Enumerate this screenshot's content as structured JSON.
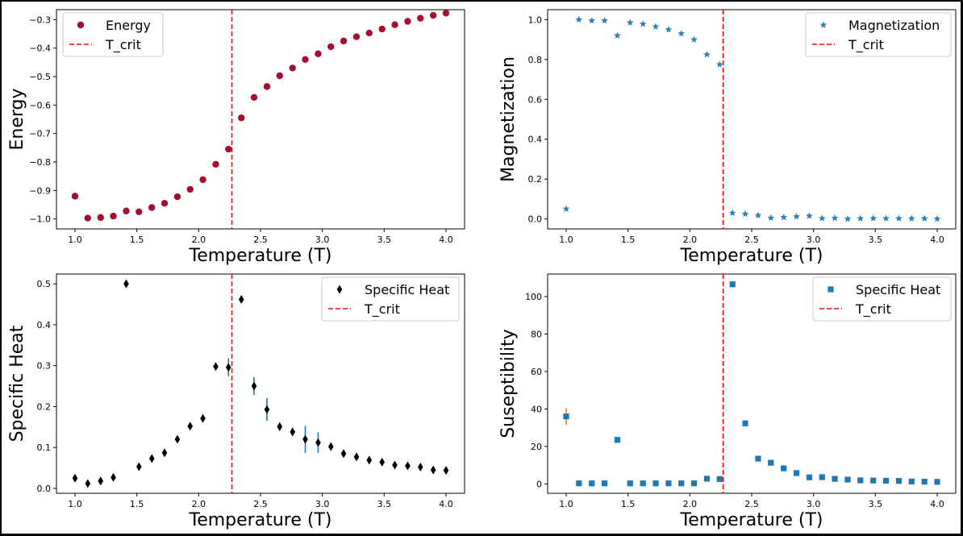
{
  "chart_data": [
    {
      "type": "scatter",
      "xlabel": "Temperature (T)",
      "ylabel": "Energy",
      "xlim": [
        0.85,
        4.15
      ],
      "ylim": [
        -1.035,
        -0.265
      ],
      "xticks": [
        1.0,
        1.5,
        2.0,
        2.5,
        3.0,
        3.5,
        4.0
      ],
      "xtick_labels": [
        "1.0",
        "1.5",
        "2.0",
        "2.5",
        "3.0",
        "3.5",
        "4.0"
      ],
      "yticks": [
        -1.0,
        -0.9,
        -0.8,
        -0.7,
        -0.6,
        -0.5,
        -0.4,
        -0.3
      ],
      "ytick_labels": [
        "−1.0",
        "−0.9",
        "−0.8",
        "−0.7",
        "−0.6",
        "−0.5",
        "−0.4",
        "−0.3"
      ],
      "legend_position": "top-left",
      "t_crit": 2.269,
      "series": [
        {
          "name": "Energy",
          "marker": "circle",
          "color": "#a50f2d",
          "x": [
            1.0,
            1.103,
            1.207,
            1.31,
            1.414,
            1.517,
            1.621,
            1.724,
            1.828,
            1.931,
            2.034,
            2.138,
            2.241,
            2.345,
            2.448,
            2.552,
            2.655,
            2.759,
            2.862,
            2.966,
            3.069,
            3.172,
            3.276,
            3.379,
            3.483,
            3.586,
            3.69,
            3.793,
            3.897,
            4.0
          ],
          "y": [
            -0.92,
            -0.997,
            -0.995,
            -0.99,
            -0.972,
            -0.975,
            -0.96,
            -0.945,
            -0.922,
            -0.896,
            -0.862,
            -0.808,
            -0.755,
            -0.645,
            -0.573,
            -0.535,
            -0.497,
            -0.47,
            -0.44,
            -0.42,
            -0.395,
            -0.375,
            -0.36,
            -0.347,
            -0.333,
            -0.318,
            -0.306,
            -0.295,
            -0.285,
            -0.277
          ]
        },
        {
          "name": "T_crit",
          "style": "dashed",
          "color": "#ff0000"
        }
      ]
    },
    {
      "type": "scatter",
      "xlabel": "Temperature (T)",
      "ylabel": "Magnetization",
      "xlim": [
        0.85,
        4.15
      ],
      "ylim": [
        -0.05,
        1.05
      ],
      "xticks": [
        1.0,
        1.5,
        2.0,
        2.5,
        3.0,
        3.5,
        4.0
      ],
      "xtick_labels": [
        "1.0",
        "1.5",
        "2.0",
        "2.5",
        "3.0",
        "3.5",
        "4.0"
      ],
      "yticks": [
        0.0,
        0.2,
        0.4,
        0.6,
        0.8,
        1.0
      ],
      "ytick_labels": [
        "0.0",
        "0.2",
        "0.4",
        "0.6",
        "0.8",
        "1.0"
      ],
      "legend_position": "top-right",
      "t_crit": 2.269,
      "series": [
        {
          "name": "Magnetization",
          "marker": "star",
          "color": "#2a7fb9",
          "x": [
            1.0,
            1.103,
            1.207,
            1.31,
            1.414,
            1.517,
            1.621,
            1.724,
            1.828,
            1.931,
            2.034,
            2.138,
            2.241,
            2.345,
            2.448,
            2.552,
            2.655,
            2.759,
            2.862,
            2.966,
            3.069,
            3.172,
            3.276,
            3.379,
            3.483,
            3.586,
            3.69,
            3.793,
            3.897,
            4.0
          ],
          "y": [
            0.05,
            1.0,
            0.995,
            0.995,
            0.92,
            0.985,
            0.978,
            0.965,
            0.95,
            0.93,
            0.9,
            0.825,
            0.775,
            0.03,
            0.025,
            0.018,
            0.005,
            0.008,
            0.012,
            0.015,
            0.003,
            0.004,
            0.0,
            0.002,
            0.003,
            0.002,
            0.002,
            0.002,
            0.002,
            0.0
          ]
        },
        {
          "name": "T_crit",
          "style": "dashed",
          "color": "#ff0000"
        }
      ]
    },
    {
      "type": "scatter",
      "xlabel": "Temperature (T)",
      "ylabel": "Specific Heat",
      "xlim": [
        0.85,
        4.15
      ],
      "ylim": [
        -0.012,
        0.524
      ],
      "xticks": [
        1.0,
        1.5,
        2.0,
        2.5,
        3.0,
        3.5,
        4.0
      ],
      "xtick_labels": [
        "1.0",
        "1.5",
        "2.0",
        "2.5",
        "3.0",
        "3.5",
        "4.0"
      ],
      "yticks": [
        0.0,
        0.1,
        0.2,
        0.3,
        0.4,
        0.5
      ],
      "ytick_labels": [
        "0.0",
        "0.1",
        "0.2",
        "0.3",
        "0.4",
        "0.5"
      ],
      "legend_position": "top-right",
      "t_crit": 2.269,
      "series": [
        {
          "name": "Specific Heat",
          "marker": "thin_diamond",
          "color": "#000000",
          "errorbar_color": "#1f77b4",
          "x": [
            1.0,
            1.103,
            1.207,
            1.31,
            1.414,
            1.517,
            1.621,
            1.724,
            1.828,
            1.931,
            2.034,
            2.138,
            2.241,
            2.345,
            2.448,
            2.552,
            2.655,
            2.759,
            2.862,
            2.966,
            3.069,
            3.172,
            3.276,
            3.379,
            3.483,
            3.586,
            3.69,
            3.793,
            3.897,
            4.0
          ],
          "y": [
            0.025,
            0.012,
            0.018,
            0.027,
            0.5,
            0.053,
            0.073,
            0.087,
            0.12,
            0.152,
            0.171,
            0.298,
            0.296,
            0.462,
            0.25,
            0.193,
            0.151,
            0.138,
            0.12,
            0.112,
            0.102,
            0.085,
            0.077,
            0.069,
            0.064,
            0.057,
            0.055,
            0.052,
            0.045,
            0.044
          ],
          "yerr": [
            0.004,
            0.003,
            0.003,
            0.004,
            0.005,
            0.005,
            0.006,
            0.006,
            0.007,
            0.006,
            0.006,
            0.008,
            0.022,
            0.008,
            0.022,
            0.028,
            0.01,
            0.01,
            0.033,
            0.025,
            0.008,
            0.008,
            0.006,
            0.006,
            0.005,
            0.005,
            0.005,
            0.006,
            0.008,
            0.006
          ]
        },
        {
          "name": "T_crit",
          "style": "dashed",
          "color": "#ff0000"
        }
      ]
    },
    {
      "type": "scatter",
      "xlabel": "Temperature (T)",
      "ylabel": "Suseptibility",
      "xlim": [
        0.85,
        4.15
      ],
      "ylim": [
        -5,
        112
      ],
      "xticks": [
        1.0,
        1.5,
        2.0,
        2.5,
        3.0,
        3.5,
        4.0
      ],
      "xtick_labels": [
        "1.0",
        "1.5",
        "2.0",
        "2.5",
        "3.0",
        "3.5",
        "4.0"
      ],
      "yticks": [
        0,
        20,
        40,
        60,
        80,
        100
      ],
      "ytick_labels": [
        "0",
        "20",
        "40",
        "60",
        "80",
        "100"
      ],
      "legend_position": "top-right",
      "t_crit": 2.269,
      "series": [
        {
          "name": "Specific Heat",
          "marker": "square",
          "color": "#1f77b4",
          "errorbar_color": "#ff7f0e",
          "x": [
            1.0,
            1.103,
            1.207,
            1.31,
            1.414,
            1.517,
            1.621,
            1.724,
            1.828,
            1.931,
            2.034,
            2.138,
            2.241,
            2.345,
            2.448,
            2.552,
            2.655,
            2.759,
            2.862,
            2.966,
            3.069,
            3.172,
            3.276,
            3.379,
            3.483,
            3.586,
            3.69,
            3.793,
            3.897,
            4.0
          ],
          "y": [
            36,
            0.3,
            0.3,
            0.3,
            23.5,
            0.3,
            0.3,
            0.3,
            0.3,
            0.3,
            0.3,
            2.8,
            2.6,
            106.5,
            32.3,
            13.5,
            11.3,
            8.3,
            5.8,
            3.5,
            3.6,
            2.7,
            2.3,
            1.9,
            1.8,
            1.7,
            1.6,
            1.3,
            1.2,
            1.1
          ],
          "yerr": [
            4.5,
            0.2,
            0.2,
            0.2,
            0.6,
            0.2,
            0.2,
            0.2,
            0.2,
            0.2,
            0.2,
            0.3,
            0.3,
            0.8,
            0.6,
            0.4,
            0.4,
            0.3,
            0.3,
            0.2,
            0.2,
            0.2,
            0.2,
            0.2,
            0.2,
            0.2,
            0.2,
            0.2,
            0.2,
            0.2
          ]
        },
        {
          "name": "T_crit",
          "style": "dashed",
          "color": "#ff0000"
        }
      ]
    }
  ]
}
